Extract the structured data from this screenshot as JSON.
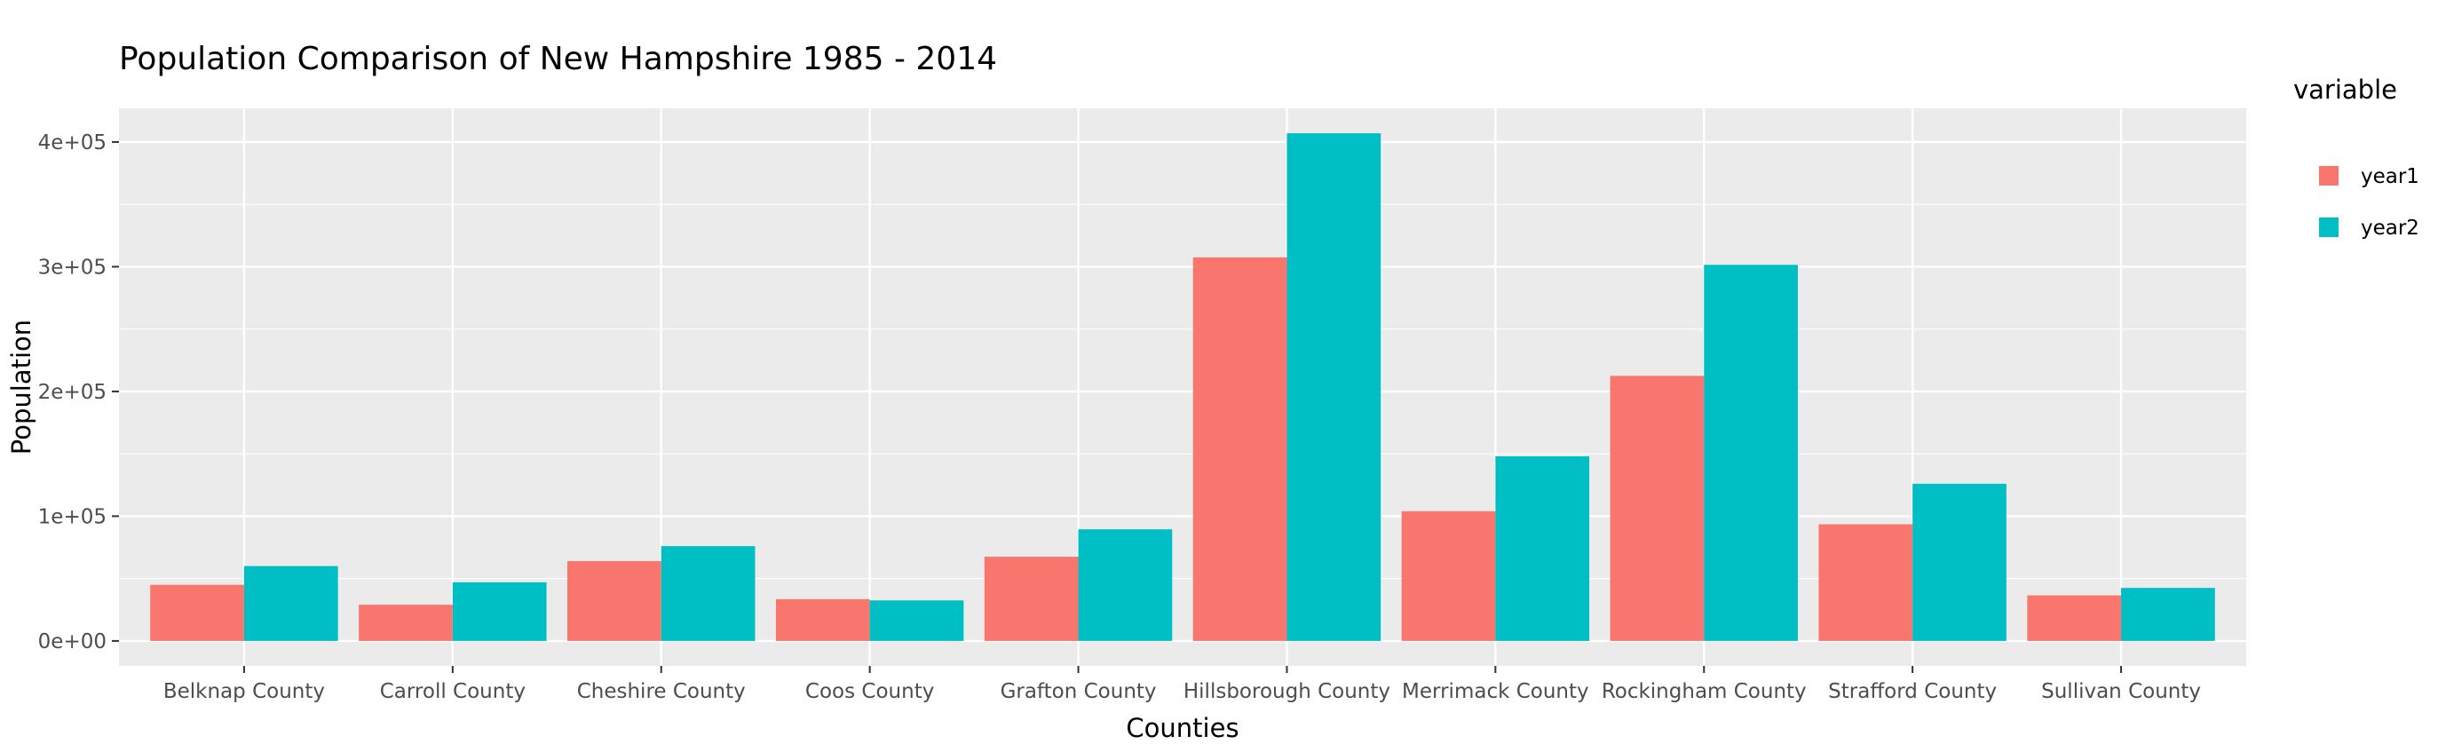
{
  "chart_data": {
    "type": "bar",
    "title": "Population Comparison of New Hampshire 1985 - 2014",
    "xlabel": "Counties",
    "ylabel": "Population",
    "categories": [
      "Belknap County",
      "Carroll County",
      "Cheshire County",
      "Coos County",
      "Grafton County",
      "Hillsborough County",
      "Merrimack County",
      "Rockingham County",
      "Strafford County",
      "Sullivan County"
    ],
    "series": [
      {
        "name": "year1",
        "color": "#F8766D",
        "values": [
          45000,
          29000,
          64000,
          33500,
          67500,
          307500,
          104000,
          212500,
          93500,
          36500
        ]
      },
      {
        "name": "year2",
        "color": "#00BFC4",
        "values": [
          60000,
          47000,
          76000,
          32500,
          89500,
          407000,
          148000,
          301500,
          126000,
          42500
        ]
      }
    ],
    "ylim": [
      -20000,
      427000
    ],
    "yticks": [
      0,
      100000,
      200000,
      300000,
      400000
    ],
    "ytick_labels": [
      "0e+00",
      "1e+05",
      "2e+05",
      "3e+05",
      "4e+05"
    ],
    "legend": {
      "title": "variable",
      "position": "right"
    },
    "grid": true,
    "panel_background": "#EBEBEB",
    "grid_color": "#FFFFFF"
  }
}
